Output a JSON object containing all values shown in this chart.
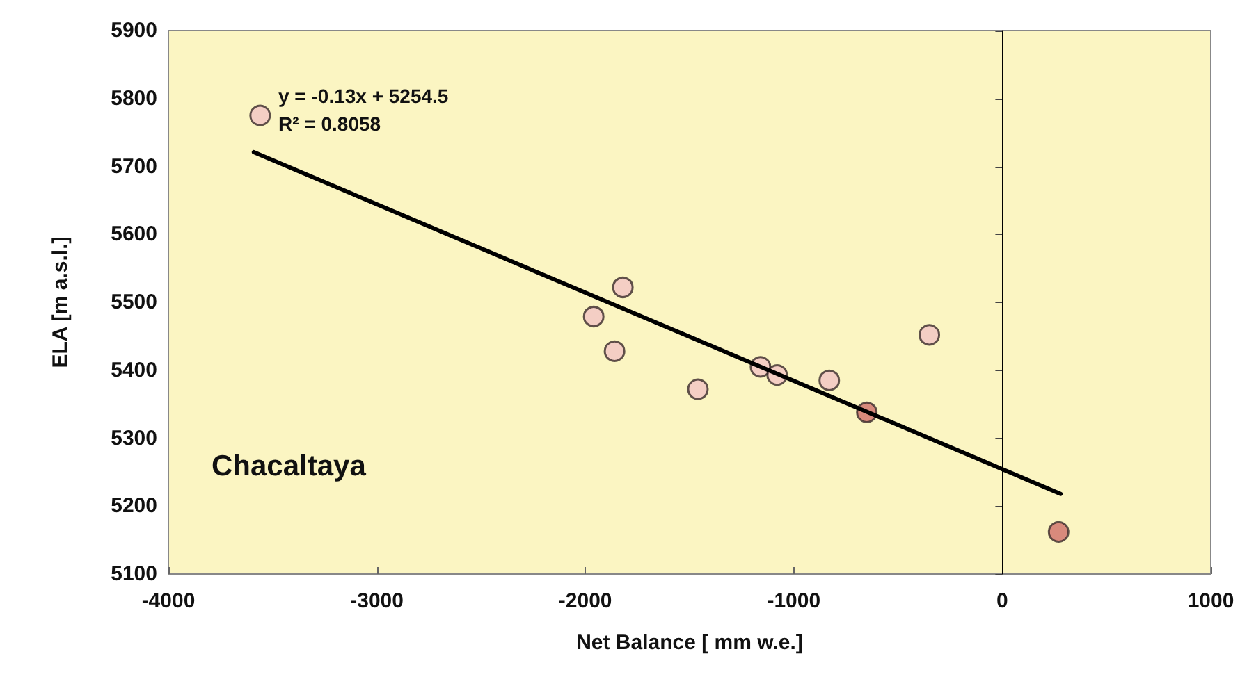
{
  "chart_data": {
    "type": "scatter",
    "xlabel": "Net Balance [ mm w.e.]",
    "ylabel": "ELA [m a.s.l.]",
    "xlim": [
      -4000,
      1000
    ],
    "xticks": [
      -4000,
      -3000,
      -2000,
      -1000,
      0,
      1000
    ],
    "ylim": [
      5100,
      5900
    ],
    "yticks": [
      5100,
      5200,
      5300,
      5400,
      5500,
      5600,
      5700,
      5800,
      5900
    ],
    "grid": false,
    "marker": "circle",
    "series": [
      {
        "x": [
          -3560,
          -1960,
          -1820,
          -1860,
          -1460,
          -1160,
          -1080,
          -830,
          -650,
          -350,
          270
        ],
        "values": [
          5775,
          5479,
          5522,
          5428,
          5372,
          5405,
          5393,
          5385,
          5338,
          5452,
          5162
        ],
        "colors": [
          "#f2c4c4",
          "#f2c4c4",
          "#f2c4c4",
          "#f2c4c4",
          "#f2c4c4",
          "#f2c4c4",
          "#f2c4c4",
          "#f2c4c4",
          "#cf6f6a",
          "#f2c4c4",
          "#cf6f6a"
        ]
      },
      {
        "type": "line",
        "color": "#000000",
        "x": [
          -3590,
          280
        ],
        "values": [
          5721,
          5218
        ],
        "marker": "none",
        "line_style": "solid"
      }
    ],
    "ref_lines": [
      {
        "axis": "x",
        "value": 0,
        "color": "#000000"
      }
    ],
    "annotations": [
      "y = -0.13x + 5254.5",
      "R² = 0.8058",
      "Chacaltaya"
    ]
  }
}
